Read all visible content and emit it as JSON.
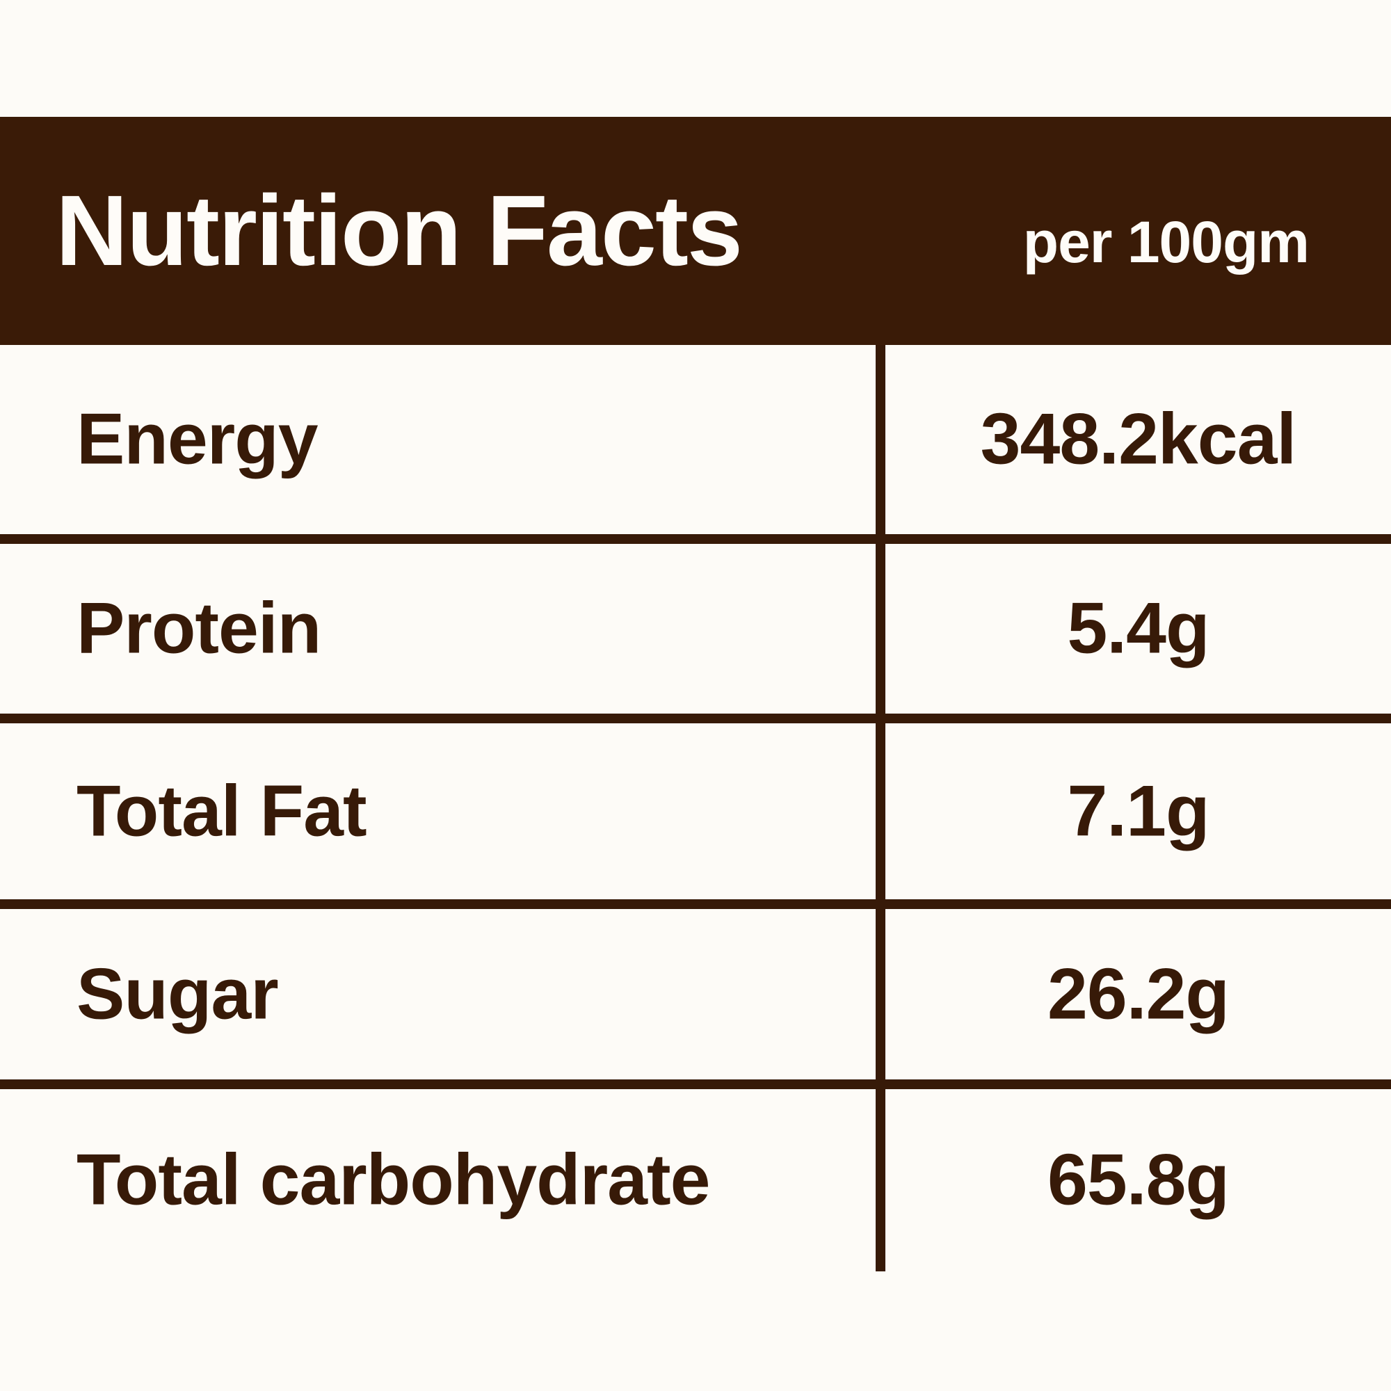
{
  "header": {
    "title": "Nutrition Facts",
    "serving": "per 100gm"
  },
  "table": {
    "rows": [
      {
        "label": "Energy",
        "value": "348.2kcal"
      },
      {
        "label": "Protein",
        "value": "5.4g"
      },
      {
        "label": "Total Fat",
        "value": "7.1g"
      },
      {
        "label": "Sugar",
        "value": "26.2g"
      },
      {
        "label": "Total carbohydrate",
        "value": "65.8g"
      }
    ]
  },
  "colors": {
    "brown": "#3A1B07",
    "ink": "#371A08",
    "bg": "#FDFBF7",
    "light": "#FEFCF8"
  }
}
